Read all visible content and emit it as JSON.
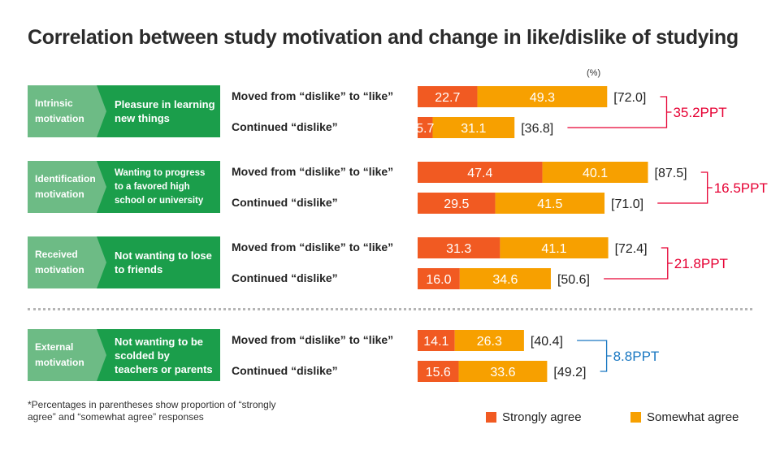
{
  "title": "Correlation between study motivation and change in like/dislike of studying",
  "unit": "(%)",
  "footnote": "*Percentages in parentheses show proportion of “strongly agree” and “somewhat agree” responses",
  "colors": {
    "motivation_box": "#6dbb85",
    "description_box": "#1b9e4b",
    "strongly": "#f15a22",
    "somewhat": "#f7a000",
    "diff_red": "#e60033",
    "diff_blue": "#1a78c2"
  },
  "legend": {
    "strongly": "Strongly agree",
    "somewhat": "Somewhat agree"
  },
  "groups": [
    {
      "motivation": "Intrinsic motivation",
      "description": "Pleasure in learning new things",
      "difference": "35.2PPT"
    },
    {
      "motivation": "Identification motivation",
      "description": "Wanting to progress to a favored high school or university",
      "difference": "16.5PPT"
    },
    {
      "motivation": "Received motivation",
      "description": "Not wanting to lose to friends",
      "difference": "21.8PPT"
    },
    {
      "motivation": "External motivation",
      "description": "Not wanting to be scolded by teachers or parents",
      "difference": "8.8PPT"
    }
  ],
  "chart_data": {
    "type": "bar",
    "orientation": "horizontal",
    "stacked": true,
    "unit": "%",
    "row_labels": [
      "Moved from “dislike” to “like”",
      "Continued “dislike”"
    ],
    "series_names": [
      "Strongly agree",
      "Somewhat agree"
    ],
    "groups": [
      {
        "rows": [
          {
            "strongly": 22.7,
            "somewhat": 49.3,
            "total": "72.0"
          },
          {
            "strongly": 5.7,
            "somewhat": 31.1,
            "total": "36.8"
          }
        ],
        "difference": "35.2PPT"
      },
      {
        "rows": [
          {
            "strongly": 47.4,
            "somewhat": 40.1,
            "total": "87.5"
          },
          {
            "strongly": 29.5,
            "somewhat": 41.5,
            "total": "71.0"
          }
        ],
        "difference": "16.5PPT"
      },
      {
        "rows": [
          {
            "strongly": 31.3,
            "somewhat": 41.1,
            "total": "72.4"
          },
          {
            "strongly": 16.0,
            "somewhat": 34.6,
            "total": "50.6"
          }
        ],
        "difference": "21.8PPT"
      },
      {
        "rows": [
          {
            "strongly": 14.1,
            "somewhat": 26.3,
            "total": "40.4"
          },
          {
            "strongly": 15.6,
            "somewhat": 33.6,
            "total": "49.2"
          }
        ],
        "difference": "8.8PPT"
      }
    ]
  }
}
